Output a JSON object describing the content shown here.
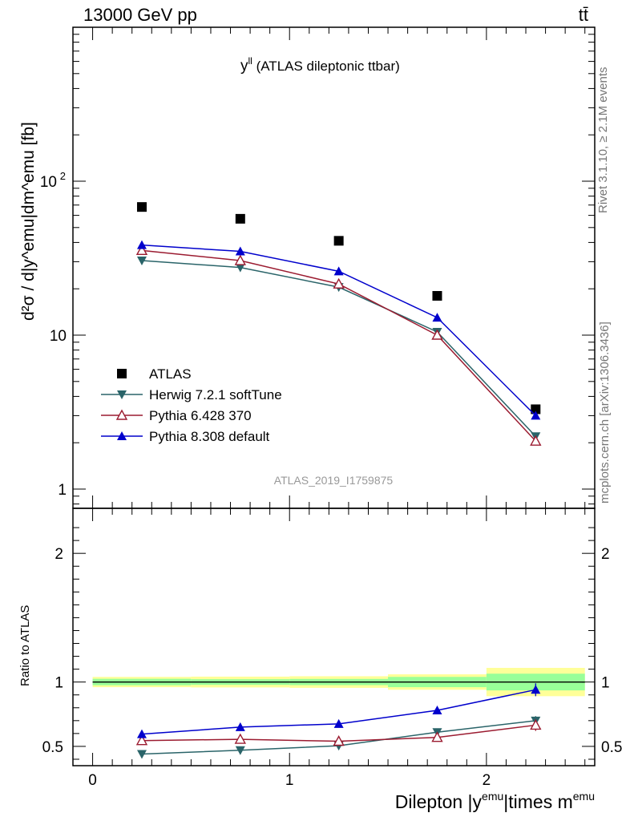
{
  "header": {
    "energy_label": "13000 GeV pp",
    "process_label": "tt̄"
  },
  "side": {
    "rivet_label": "Rivet 3.1.10, ≥ 2.1M events",
    "url_label": "mcplots.cern.ch [arXiv:1306.3436]"
  },
  "chart_data": [
    {
      "type": "scatter",
      "panel": "main",
      "title": "y^{ll} (ATLAS dileptonic ttbar)",
      "title_main": "y",
      "title_sup": "ll",
      "title_rest": " (ATLAS dileptonic ttbar)",
      "ylabel": "d²σ / d|y^emu|dm^emu [fb]",
      "y_scale": "log",
      "ylim": [
        0.75,
        1000
      ],
      "xlim": [
        -0.1,
        2.55
      ],
      "x_ticks": [
        0,
        1,
        2
      ],
      "y_tick_labels": [
        {
          "value": 100,
          "base": "10",
          "exp": "2"
        },
        {
          "value": 10,
          "base": "10",
          "exp": ""
        },
        {
          "value": 1,
          "base": "1",
          "exp": ""
        }
      ],
      "watermark": "ATLAS_2019_I1759875",
      "legend_position": "lower-left",
      "x": [
        0.25,
        0.75,
        1.25,
        1.75,
        2.25
      ],
      "series": [
        {
          "name": "ATLAS",
          "marker": "square",
          "color": "#000000",
          "line": false,
          "values": [
            68,
            57,
            41,
            18,
            3.3
          ]
        },
        {
          "name": "Herwig 7.2.1 softTune",
          "marker": "triangle-down",
          "color": "#2a6469",
          "line": true,
          "values": [
            30.5,
            27.5,
            20.5,
            10.5,
            2.2
          ]
        },
        {
          "name": "Pythia 6.428 370",
          "marker": "triangle-up-open",
          "color": "#9b1b30",
          "line": true,
          "values": [
            35.5,
            30.5,
            21.5,
            10.0,
            2.05
          ]
        },
        {
          "name": "Pythia 8.308 default",
          "marker": "triangle-up",
          "color": "#0000cc",
          "line": true,
          "values": [
            38.5,
            35.0,
            26.0,
            13.0,
            3.0
          ]
        }
      ]
    },
    {
      "type": "scatter",
      "panel": "ratio",
      "ylabel": "Ratio to ATLAS",
      "xlabel_main": "Dilepton |y",
      "xlabel_sup1": "emu",
      "xlabel_mid": "|times m",
      "xlabel_sup2": "emu",
      "ylim": [
        0.35,
        2.35
      ],
      "xlim": [
        -0.1,
        2.55
      ],
      "x_ticks": [
        0,
        1,
        2
      ],
      "y_ticks": [
        0.5,
        1,
        2
      ],
      "x": [
        0.25,
        0.75,
        1.25,
        1.75,
        2.25
      ],
      "bands": {
        "edges": [
          0,
          0.5,
          1.0,
          1.5,
          2.0,
          2.5
        ],
        "stat": [
          0.025,
          0.022,
          0.024,
          0.04,
          0.065
        ],
        "total": [
          0.04,
          0.042,
          0.045,
          0.06,
          0.11
        ]
      },
      "series": [
        {
          "name": "Herwig 7.2.1 softTune",
          "values": [
            0.44,
            0.47,
            0.505,
            0.61,
            0.7
          ],
          "errors": [
            0,
            0,
            0,
            0,
            0.035
          ]
        },
        {
          "name": "Pythia 6.428 370",
          "values": [
            0.545,
            0.555,
            0.54,
            0.57,
            0.665
          ],
          "errors": [
            0,
            0,
            0,
            0,
            0.045
          ]
        },
        {
          "name": "Pythia 8.308 default",
          "values": [
            0.595,
            0.65,
            0.675,
            0.78,
            0.94
          ],
          "errors": [
            0,
            0,
            0,
            0.02,
            0.05
          ]
        }
      ]
    }
  ]
}
